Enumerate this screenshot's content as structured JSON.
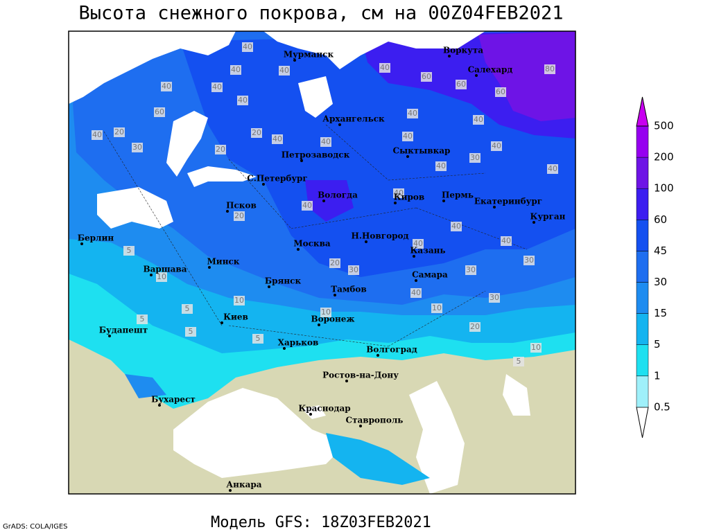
{
  "title": "Высота снежного покрова, см на 00Z04FEB2021",
  "footer": "Модель GFS: 18Z03FEB2021",
  "credit": "GrADS: COLA/IGES",
  "colorbar": {
    "levels": [
      0.5,
      1,
      5,
      15,
      30,
      45,
      60,
      100,
      200,
      500
    ],
    "colors": [
      "#ffffff",
      "#9ff0fa",
      "#1ee0f0",
      "#14b4f0",
      "#1e8cf0",
      "#1e6ef0",
      "#1450f0",
      "#3c1ef0",
      "#6e14e6",
      "#9600f0",
      "#c800f0"
    ]
  },
  "cities": [
    "Мурманск",
    "Воркута",
    "Салехард",
    "Архангельск",
    "Петрозаводск",
    "Сыктывкар",
    "С.Петербург",
    "Вологда",
    "Киров",
    "Пермь",
    "Екатеринбург",
    "Курган",
    "Псков",
    "Берлин",
    "Москва",
    "Н.Новгород",
    "Казань",
    "Минск",
    "Варшава",
    "Брянск",
    "Самара",
    "Тамбов",
    "Киев",
    "Воронеж",
    "Будапешт",
    "Харьков",
    "Волгоград",
    "Ростов-на-Дону",
    "Бухарест",
    "Краснодар",
    "Ставрополь",
    "Анкара"
  ],
  "contour_labels": [
    40,
    40,
    40,
    40,
    40,
    40,
    60,
    40,
    20,
    30,
    20,
    20,
    40,
    40,
    40,
    40,
    60,
    60,
    60,
    80,
    40,
    40,
    40,
    30,
    40,
    40,
    40,
    40,
    40,
    30,
    40,
    20,
    30,
    30,
    40,
    30,
    10,
    20,
    10,
    5,
    20,
    5,
    10,
    10,
    5,
    5,
    5,
    5,
    10,
    40
  ]
}
